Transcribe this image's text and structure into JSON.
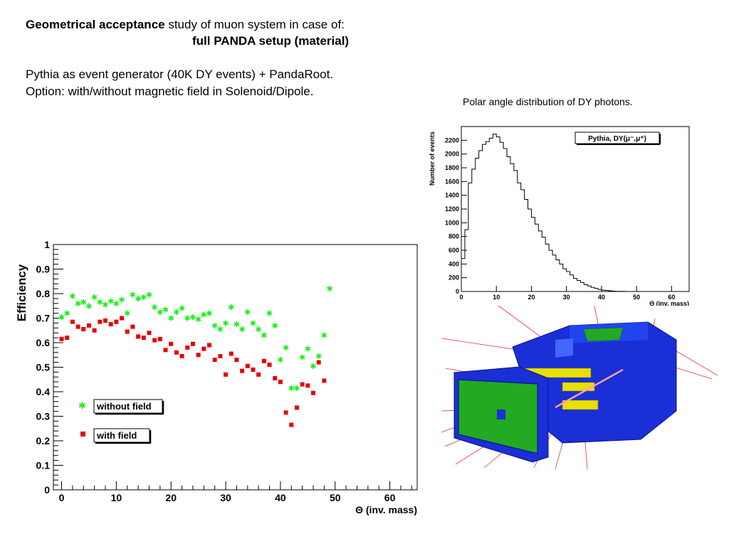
{
  "slide": {
    "title_bold": "Geometrical acceptance",
    "title_rest": " study of muon system in case of:",
    "subtitle": "full PANDA setup (material)",
    "desc1": "Pythia as event generator (40K DY events) + PandaRoot.",
    "desc2": "Option: with/without magnetic field in Solenoid/Dipole.",
    "caption": "Polar angle distribution of DY photons."
  },
  "colors": {
    "without_field": "#19f019",
    "with_field": "#e60000",
    "detector_blue": "#1a2fd6",
    "detector_green": "#22aa22",
    "detector_yellow": "#e8e000"
  },
  "icons": [
    "detector-3d-render"
  ],
  "chart_data": [
    {
      "type": "scatter",
      "xlabel": "Θ (inv. mass)",
      "ylabel": "Efficiency",
      "xlim": [
        -1.5,
        65
      ],
      "ylim": [
        0,
        1
      ],
      "xticks": [
        "0",
        "10",
        "20",
        "30",
        "40",
        "50",
        "60"
      ],
      "yticks": [
        "0",
        "0.1",
        "0.2",
        "0.3",
        "0.4",
        "0.5",
        "0.6",
        "0.7",
        "0.8",
        "0.9",
        "1"
      ],
      "legend_position": "lower-left",
      "series": [
        {
          "name": "without field",
          "marker": "star",
          "points": [
            [
              0,
              0.705
            ],
            [
              1,
              0.72
            ],
            [
              2,
              0.79
            ],
            [
              3,
              0.76
            ],
            [
              4,
              0.765
            ],
            [
              5,
              0.75
            ],
            [
              6,
              0.785
            ],
            [
              7,
              0.765
            ],
            [
              8,
              0.755
            ],
            [
              9,
              0.77
            ],
            [
              10,
              0.76
            ],
            [
              11,
              0.775
            ],
            [
              12,
              0.72
            ],
            [
              13,
              0.795
            ],
            [
              14,
              0.78
            ],
            [
              15,
              0.785
            ],
            [
              16,
              0.795
            ],
            [
              17,
              0.745
            ],
            [
              18,
              0.725
            ],
            [
              19,
              0.735
            ],
            [
              20,
              0.7
            ],
            [
              21,
              0.725
            ],
            [
              22,
              0.74
            ],
            [
              23,
              0.7
            ],
            [
              24,
              0.705
            ],
            [
              25,
              0.695
            ],
            [
              26,
              0.715
            ],
            [
              27,
              0.72
            ],
            [
              28,
              0.67
            ],
            [
              29,
              0.655
            ],
            [
              30,
              0.68
            ],
            [
              31,
              0.745
            ],
            [
              32,
              0.675
            ],
            [
              33,
              0.655
            ],
            [
              34,
              0.725
            ],
            [
              35,
              0.68
            ],
            [
              36,
              0.655
            ],
            [
              37,
              0.63
            ],
            [
              38,
              0.72
            ],
            [
              39,
              0.67
            ],
            [
              40,
              0.53
            ],
            [
              41,
              0.58
            ],
            [
              42,
              0.415
            ],
            [
              43,
              0.415
            ],
            [
              44,
              0.54
            ],
            [
              45,
              0.575
            ],
            [
              46,
              0.505
            ],
            [
              47,
              0.545
            ],
            [
              48,
              0.63
            ],
            [
              49,
              0.82
            ]
          ]
        },
        {
          "name": "with field",
          "marker": "square",
          "points": [
            [
              0,
              0.615
            ],
            [
              1,
              0.62
            ],
            [
              2,
              0.685
            ],
            [
              3,
              0.665
            ],
            [
              4,
              0.655
            ],
            [
              5,
              0.67
            ],
            [
              6,
              0.65
            ],
            [
              7,
              0.685
            ],
            [
              8,
              0.69
            ],
            [
              9,
              0.675
            ],
            [
              10,
              0.685
            ],
            [
              11,
              0.7
            ],
            [
              12,
              0.645
            ],
            [
              13,
              0.665
            ],
            [
              14,
              0.625
            ],
            [
              15,
              0.62
            ],
            [
              16,
              0.64
            ],
            [
              17,
              0.61
            ],
            [
              18,
              0.615
            ],
            [
              19,
              0.57
            ],
            [
              20,
              0.595
            ],
            [
              21,
              0.56
            ],
            [
              22,
              0.545
            ],
            [
              23,
              0.58
            ],
            [
              24,
              0.595
            ],
            [
              25,
              0.55
            ],
            [
              26,
              0.575
            ],
            [
              27,
              0.59
            ],
            [
              28,
              0.53
            ],
            [
              29,
              0.545
            ],
            [
              30,
              0.47
            ],
            [
              31,
              0.555
            ],
            [
              32,
              0.53
            ],
            [
              33,
              0.485
            ],
            [
              34,
              0.505
            ],
            [
              35,
              0.49
            ],
            [
              36,
              0.47
            ],
            [
              37,
              0.525
            ],
            [
              38,
              0.51
            ],
            [
              39,
              0.455
            ],
            [
              40,
              0.44
            ],
            [
              41,
              0.315
            ],
            [
              42,
              0.265
            ],
            [
              43,
              0.335
            ],
            [
              44,
              0.43
            ],
            [
              45,
              0.425
            ],
            [
              46,
              0.395
            ],
            [
              47,
              0.52
            ],
            [
              48,
              0.445
            ]
          ]
        }
      ]
    },
    {
      "type": "histogram",
      "xlabel": "Θ (inv. mass)",
      "ylabel": "Number of events",
      "legend_label": "Pythia, DY(μ⁻,μ⁺)",
      "legend_position": "top-right",
      "xlim": [
        0,
        65
      ],
      "ylim": [
        0,
        2400
      ],
      "xticks": [
        "0",
        "10",
        "20",
        "30",
        "40",
        "50",
        "60"
      ],
      "yticks": [
        "0",
        "200",
        "400",
        "600",
        "800",
        "1000",
        "1200",
        "1400",
        "1600",
        "1800",
        "2000",
        "2200"
      ],
      "bin_width": 1,
      "x_start": 0,
      "values": [
        480,
        900,
        1580,
        1780,
        1940,
        2050,
        2140,
        2180,
        2230,
        2290,
        2250,
        2170,
        2080,
        1960,
        1860,
        1760,
        1580,
        1480,
        1340,
        1200,
        1080,
        980,
        880,
        790,
        690,
        600,
        530,
        460,
        400,
        330,
        290,
        240,
        190,
        160,
        130,
        100,
        80,
        60,
        45,
        30,
        20,
        15,
        10,
        5,
        3,
        2,
        1,
        0,
        0,
        0
      ]
    }
  ]
}
